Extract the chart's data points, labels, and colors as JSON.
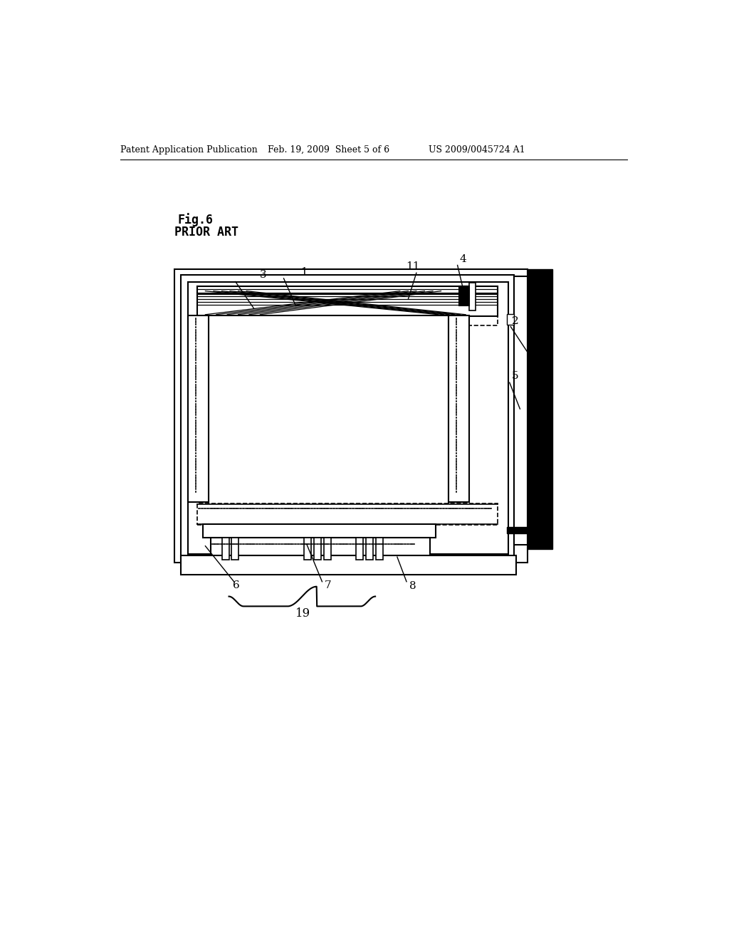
{
  "bg_color": "#ffffff",
  "header_left": "Patent Application Publication",
  "header_mid": "Feb. 19, 2009  Sheet 5 of 6",
  "header_right": "US 2009/0045724 A1",
  "fig_label": "Fig.6",
  "prior_art_label": "PRIOR ART"
}
